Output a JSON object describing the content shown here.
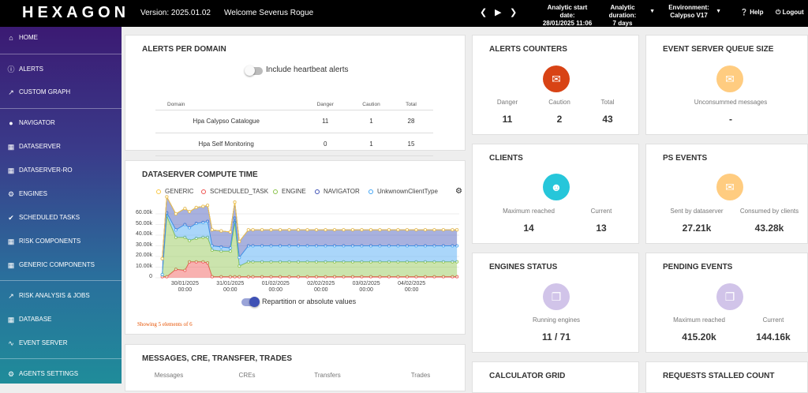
{
  "topbar": {
    "logo": "HEXAGON",
    "version": "Version: 2025.01.02",
    "welcome": "Welcome Severus Rogue",
    "analytic_start_label": "Analytic start date:",
    "analytic_start_value": "28/01/2025 11:06",
    "analytic_duration_label": "Analytic duration:",
    "analytic_duration_value": "7 days",
    "environment_label": "Environment:",
    "environment_value": "Calypso V17",
    "help": "Help",
    "logout": "Logout"
  },
  "sidebar": {
    "items": [
      {
        "label": "HOME",
        "icon": "home-icon"
      },
      {
        "label": "ALERTS",
        "icon": "alert-icon"
      },
      {
        "label": "CUSTOM GRAPH",
        "icon": "trend-icon"
      },
      {
        "label": "NAVIGATOR",
        "icon": "pin-icon"
      },
      {
        "label": "DATASERVER",
        "icon": "building-icon"
      },
      {
        "label": "DATASERVER-RO",
        "icon": "building-icon"
      },
      {
        "label": "ENGINES",
        "icon": "gear-icon"
      },
      {
        "label": "SCHEDULED TASKS",
        "icon": "check-icon"
      },
      {
        "label": "RISK COMPONENTS",
        "icon": "grid-icon"
      },
      {
        "label": "GENERIC COMPONENTS",
        "icon": "grid-icon"
      },
      {
        "label": "RISK ANALYSIS & JOBS",
        "icon": "trend-icon"
      },
      {
        "label": "DATABASE",
        "icon": "building-icon"
      },
      {
        "label": "EVENT SERVER",
        "icon": "pulse-icon"
      },
      {
        "label": "AGENTS SETTINGS",
        "icon": "gear-icon"
      }
    ]
  },
  "alerts_per_domain": {
    "title": "ALERTS PER DOMAIN",
    "toggle_label": "Include heartbeat alerts",
    "columns": [
      "Domain",
      "Danger",
      "Caution",
      "Total"
    ],
    "rows": [
      {
        "domain": "Hpa Calypso Catalogue",
        "danger": "11",
        "caution": "1",
        "total": "28"
      },
      {
        "domain": "Hpa Self Monitoring",
        "danger": "0",
        "caution": "1",
        "total": "15"
      }
    ]
  },
  "alerts_counters": {
    "title": "ALERTS COUNTERS",
    "icon": "message-icon",
    "color": "#d84315",
    "labels": [
      "Danger",
      "Caution",
      "Total"
    ],
    "values": [
      "11",
      "2",
      "43"
    ]
  },
  "event_server_queue": {
    "title": "EVENT SERVER QUEUE SIZE",
    "icon": "message-icon",
    "color": "#ffcc80",
    "label": "Unconsummed messages",
    "value": "-"
  },
  "clients": {
    "title": "CLIENTS",
    "icon": "person-icon",
    "color": "#26c6da",
    "labels": [
      "Maximum reached",
      "Current"
    ],
    "values": [
      "14",
      "13"
    ]
  },
  "ps_events": {
    "title": "PS EVENTS",
    "icon": "message-icon",
    "color": "#ffcc80",
    "labels": [
      "Sent by dataserver",
      "Consumed by clients"
    ],
    "values": [
      "27.21k",
      "43.28k"
    ]
  },
  "engines_status": {
    "title": "ENGINES STATUS",
    "icon": "copy-icon",
    "color": "#d1c4e9",
    "label": "Running engines",
    "value": "11 / 71"
  },
  "pending_events": {
    "title": "PENDING EVENTS",
    "icon": "copy-icon",
    "color": "#d1c4e9",
    "labels": [
      "Maximum reached",
      "Current"
    ],
    "values": [
      "415.20k",
      "144.16k"
    ]
  },
  "calculator_grid": {
    "title": "CALCULATOR GRID"
  },
  "requests_stalled": {
    "title": "REQUESTS STALLED COUNT"
  },
  "messages_card": {
    "title": "MESSAGES, CRE, TRANSFER, TRADES",
    "columns": [
      "Messages",
      "CREs",
      "Transfers",
      "Trades"
    ]
  },
  "dataserver_compute": {
    "title": "DATASERVER COMPUTE TIME",
    "toggle_label": "Repartition or absolute values",
    "footer": "Showing 5 elements of 6",
    "settings_icon": "gear-icon"
  },
  "chart_data": {
    "type": "area",
    "legend": [
      "GENERIC",
      "SCHEDULED_TASK",
      "ENGINE",
      "NAVIGATOR",
      "UnkwnownClientType"
    ],
    "colors": [
      "#f9c846",
      "#ef5350",
      "#8bc34a",
      "#3f51b5",
      "#42a5f5"
    ],
    "y_ticks": [
      "60.00k",
      "50.00k",
      "40.00k",
      "30.00k",
      "20.00k",
      "10.00k",
      "0"
    ],
    "ylim": [
      0,
      60000
    ],
    "x_ticks": [
      {
        "day": "30/01/2025",
        "time": "00:00"
      },
      {
        "day": "31/01/2025",
        "time": "00:00"
      },
      {
        "day": "01/02/2025",
        "time": "00:00"
      },
      {
        "day": "02/02/2025",
        "time": "00:00"
      },
      {
        "day": "03/02/2025",
        "time": "00:00"
      },
      {
        "day": "04/02/2025",
        "time": "00:00"
      }
    ],
    "xlim": [
      -0.15,
      6.55
    ],
    "x": [
      0,
      0.1,
      0.3,
      0.5,
      0.6,
      0.75,
      0.9,
      1.0,
      1.1,
      1.3,
      1.5,
      1.6,
      1.7,
      1.9,
      2.0,
      2.2,
      2.4,
      2.6,
      2.8,
      3.0,
      3.2,
      3.4,
      3.6,
      3.8,
      4.0,
      4.2,
      4.4,
      4.6,
      4.8,
      5.0,
      5.2,
      5.4,
      5.6,
      5.8,
      6.0,
      6.2,
      6.4,
      6.5
    ],
    "series": [
      {
        "name": "SCHEDULED_TASK",
        "values": [
          1000,
          1000,
          8000,
          7000,
          15000,
          15000,
          15000,
          14000,
          1000,
          1000,
          1000,
          1000,
          1000,
          1000,
          1000,
          1000,
          1000,
          1000,
          1000,
          1000,
          1000,
          1000,
          1000,
          1000,
          1000,
          1000,
          1000,
          1000,
          1000,
          1000,
          1000,
          1000,
          1000,
          1000,
          1000,
          1000,
          1000,
          1000
        ]
      },
      {
        "name": "ENGINE",
        "values": [
          2000,
          57000,
          30000,
          31000,
          20000,
          22000,
          23000,
          24000,
          25000,
          24000,
          24000,
          51000,
          10000,
          14000,
          14000,
          14000,
          14000,
          14000,
          14000,
          14000,
          14000,
          14000,
          14000,
          14000,
          14000,
          14000,
          14000,
          14000,
          14000,
          14000,
          14000,
          14000,
          14000,
          14000,
          14000,
          14000,
          14000,
          14000
        ]
      },
      {
        "name": "UnkwnownClientType",
        "values": [
          0,
          3000,
          7000,
          12000,
          12000,
          14000,
          14000,
          15000,
          4000,
          4000,
          3000,
          4000,
          8000,
          15000,
          15000,
          15000,
          15000,
          15000,
          15000,
          15000,
          15000,
          15000,
          15000,
          15000,
          15000,
          15000,
          15000,
          15000,
          15000,
          15000,
          15000,
          15000,
          15000,
          15000,
          15000,
          15000,
          15000,
          15000
        ]
      },
      {
        "name": "NAVIGATOR",
        "values": [
          15000,
          15000,
          15000,
          15000,
          15000,
          15000,
          15000,
          15000,
          15000,
          15000,
          15000,
          15000,
          15000,
          15000,
          15000,
          15000,
          15000,
          15000,
          15000,
          15000,
          15000,
          15000,
          15000,
          15000,
          15000,
          15000,
          15000,
          15000,
          15000,
          15000,
          15000,
          15000,
          15000,
          15000,
          15000,
          15000,
          15000,
          15000
        ]
      },
      {
        "name": "GENERIC",
        "values": [
          0,
          0,
          0,
          0,
          0,
          0,
          0,
          0,
          0,
          0,
          0,
          0,
          0,
          0,
          0,
          0,
          0,
          0,
          0,
          0,
          0,
          0,
          0,
          0,
          0,
          0,
          0,
          0,
          0,
          0,
          0,
          0,
          0,
          0,
          0,
          0,
          0,
          0
        ]
      }
    ]
  }
}
